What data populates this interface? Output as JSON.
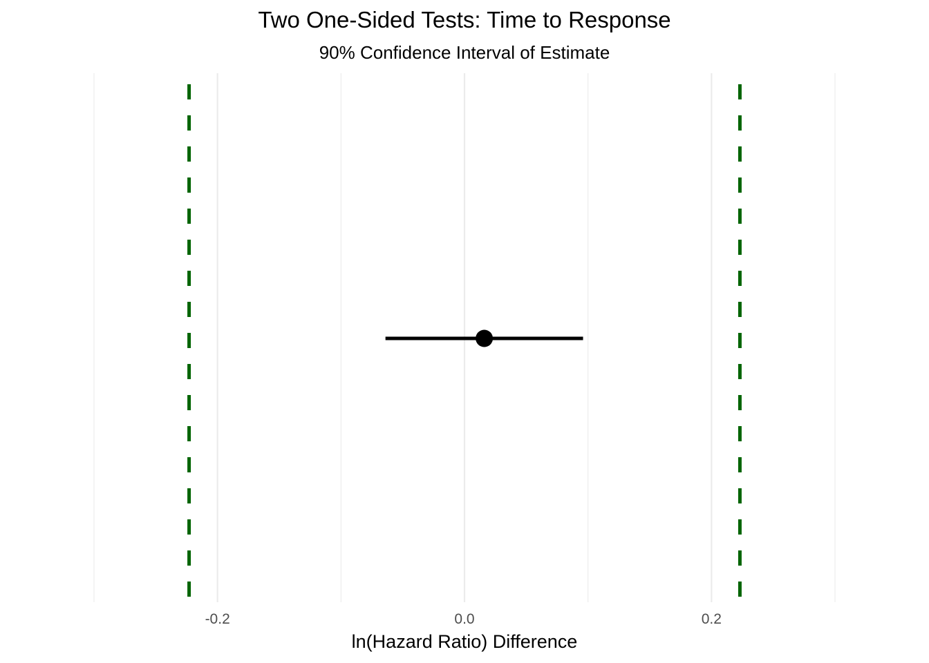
{
  "chart_data": {
    "type": "errorbar",
    "title": "Two One-Sided Tests: Time to Response",
    "subtitle": "90% Confidence Interval of Estimate",
    "xlabel": "ln(Hazard Ratio) Difference",
    "ylabel": "",
    "xlim": [
      -0.3,
      0.3
    ],
    "x_ticks": [
      -0.2,
      0.0,
      0.2
    ],
    "x_tick_labels": [
      "-0.2",
      "0.0",
      "0.2"
    ],
    "grid": true,
    "estimate": 0.016,
    "ci_lower": -0.064,
    "ci_upper": 0.096,
    "equivalence_bounds": [
      -0.223,
      0.223
    ],
    "colors": {
      "estimate": "#000000",
      "bounds": "#006400",
      "grid": "#ebebeb",
      "tick_text": "#4d4d4d"
    }
  }
}
